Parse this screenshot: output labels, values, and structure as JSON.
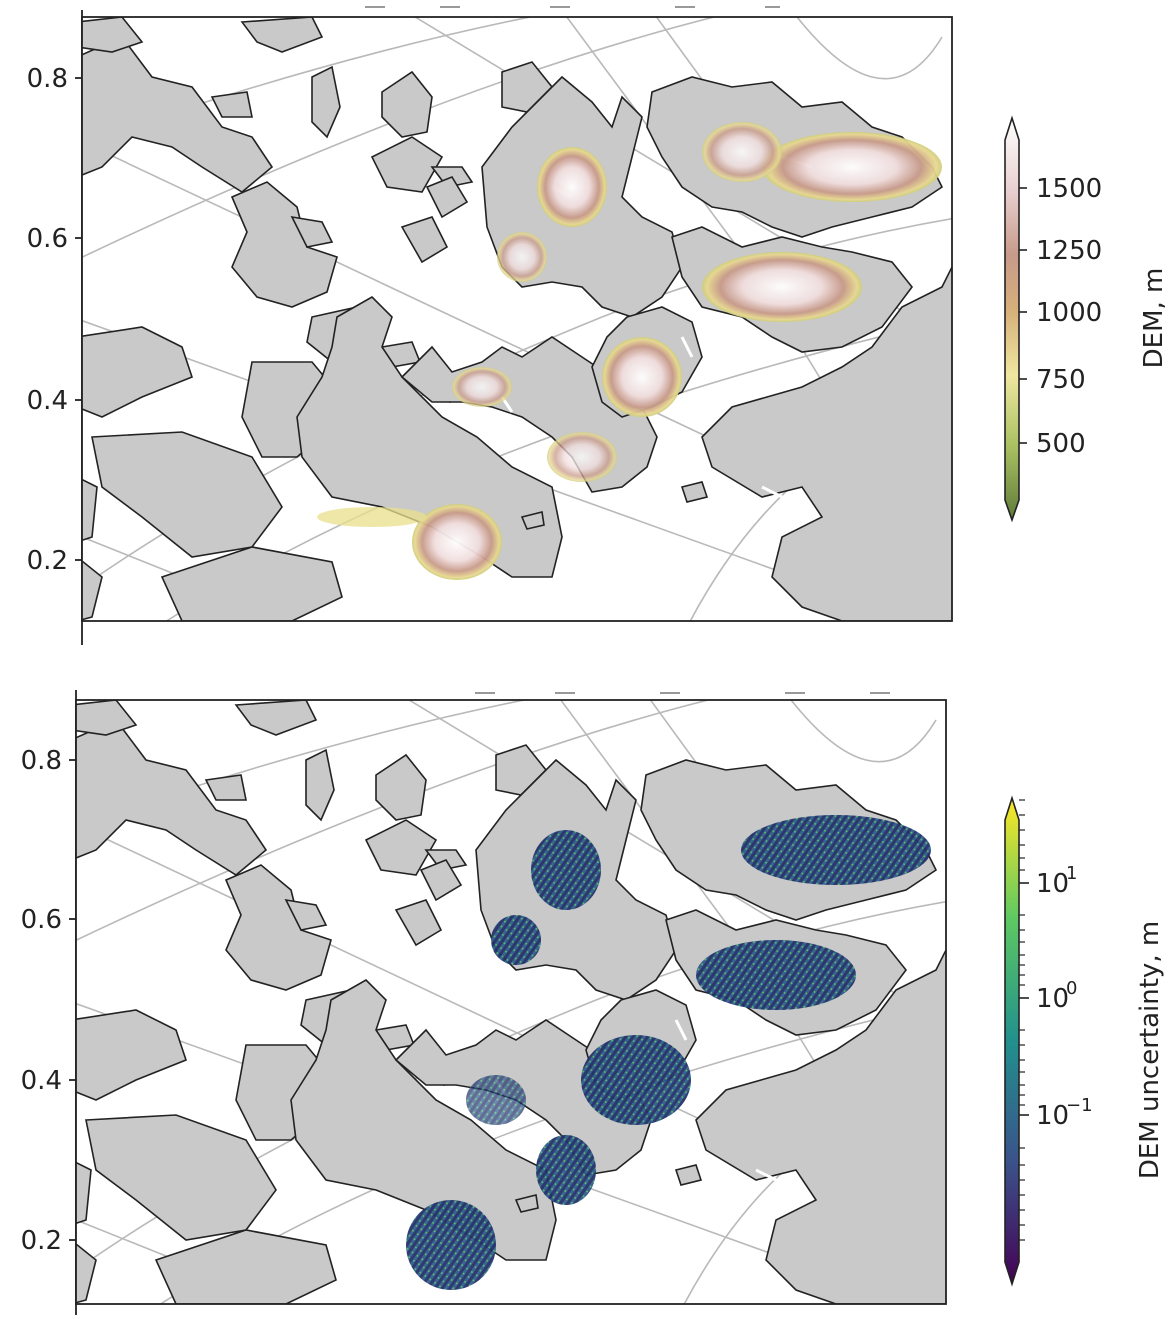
{
  "panels": [
    {
      "id": "dem",
      "y_ticks": [
        "0.8",
        "0.6",
        "0.4",
        "0.2"
      ],
      "colorbar": {
        "label": "DEM, m",
        "ticks": [
          "1500",
          "1250",
          "1000",
          "750",
          "500"
        ],
        "colors": [
          "#5f7a3a",
          "#a8c060",
          "#efe7a0",
          "#d7b07a",
          "#c89a8a",
          "#e9d0d0",
          "#ffffff"
        ]
      }
    },
    {
      "id": "uncertainty",
      "y_ticks": [
        "0.8",
        "0.6",
        "0.4",
        "0.2"
      ],
      "colorbar": {
        "label": "DEM uncertainty, m",
        "ticks": [
          "10",
          "10",
          "10"
        ],
        "tick_exponents": [
          "1",
          "0",
          "−1"
        ],
        "colors": [
          "#440154",
          "#3b528b",
          "#21908d",
          "#5dc863",
          "#fde725"
        ]
      }
    }
  ],
  "colors": {
    "land": "#c9c9c9",
    "coast": "#222222",
    "graticule": "#b9b9b9"
  }
}
